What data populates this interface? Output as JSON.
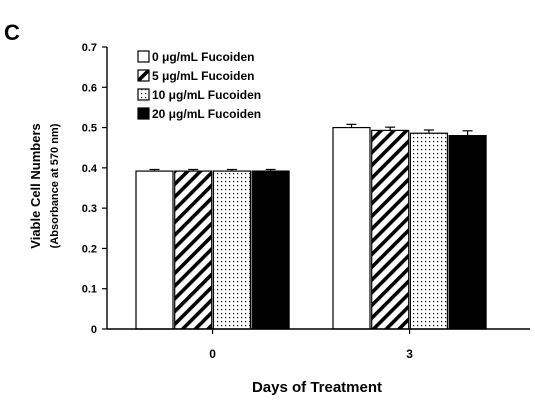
{
  "panel_label": "C",
  "chart_data": {
    "type": "bar",
    "categories": [
      "0",
      "3"
    ],
    "xlabel": "Days of Treatment",
    "ylabel": "Viable Cell Numbers",
    "ylabel_sub": "(Absorbance at 570 nm)",
    "ylim": [
      0,
      0.7
    ],
    "yticks": [
      "0",
      "0.1",
      "0.2",
      "0.3",
      "0.4",
      "0.5",
      "0.6",
      "0.7"
    ],
    "grid": false,
    "legend_position": "top-left",
    "series": [
      {
        "name": "0 μg/mL Fucoiden",
        "pattern": "white",
        "values": [
          0.392,
          0.5
        ],
        "errors": [
          0.004,
          0.008
        ]
      },
      {
        "name": "5 μg/mL Fucoiden",
        "pattern": "diagonal-hatch",
        "values": [
          0.392,
          0.493
        ],
        "errors": [
          0.004,
          0.008
        ]
      },
      {
        "name": "10 μg/mL Fucoiden",
        "pattern": "dotted",
        "values": [
          0.392,
          0.486
        ],
        "errors": [
          0.004,
          0.008
        ]
      },
      {
        "name": "20 μg/mL Fucoiden",
        "pattern": "black",
        "values": [
          0.392,
          0.48
        ],
        "errors": [
          0.004,
          0.012
        ]
      }
    ]
  }
}
